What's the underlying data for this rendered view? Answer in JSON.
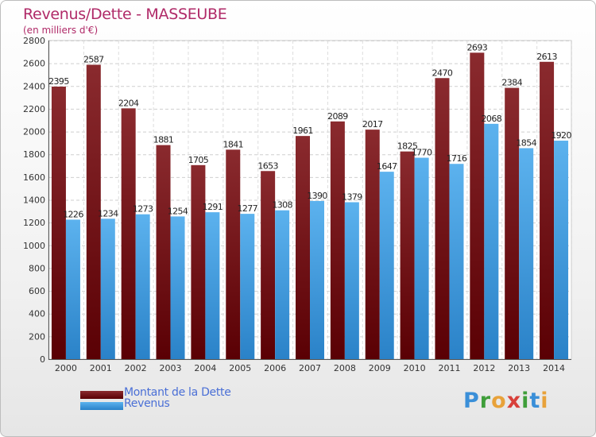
{
  "title": "Revenus/Dette - MASSEUBE",
  "subtitle": "(en milliers d'€)",
  "brand": {
    "text": "Proxiti"
  },
  "colors": {
    "title": "#b02a68",
    "dette": "#7a1418",
    "revenus": "#3d9be0",
    "legend_text": "#4a6fd6"
  },
  "chart_data": {
    "type": "bar",
    "categories": [
      "2000",
      "2001",
      "2002",
      "2003",
      "2004",
      "2005",
      "2006",
      "2007",
      "2008",
      "2009",
      "2010",
      "2011",
      "2012",
      "2013",
      "2014"
    ],
    "series": [
      {
        "name": "Montant de la Dette",
        "values": [
          2395,
          2587,
          2204,
          1881,
          1705,
          1841,
          1653,
          1961,
          2089,
          2017,
          1825,
          2470,
          2693,
          2384,
          2613
        ]
      },
      {
        "name": "Revenus",
        "values": [
          1226,
          1234,
          1273,
          1254,
          1291,
          1277,
          1308,
          1390,
          1379,
          1647,
          1770,
          1716,
          2068,
          1854,
          1920
        ]
      }
    ],
    "ylim": [
      0,
      2800
    ],
    "yticks": [
      0,
      200,
      400,
      600,
      800,
      1000,
      1200,
      1400,
      1600,
      1800,
      2000,
      2200,
      2400,
      2600,
      2800
    ],
    "grid": true,
    "legend": "bottom-left"
  }
}
